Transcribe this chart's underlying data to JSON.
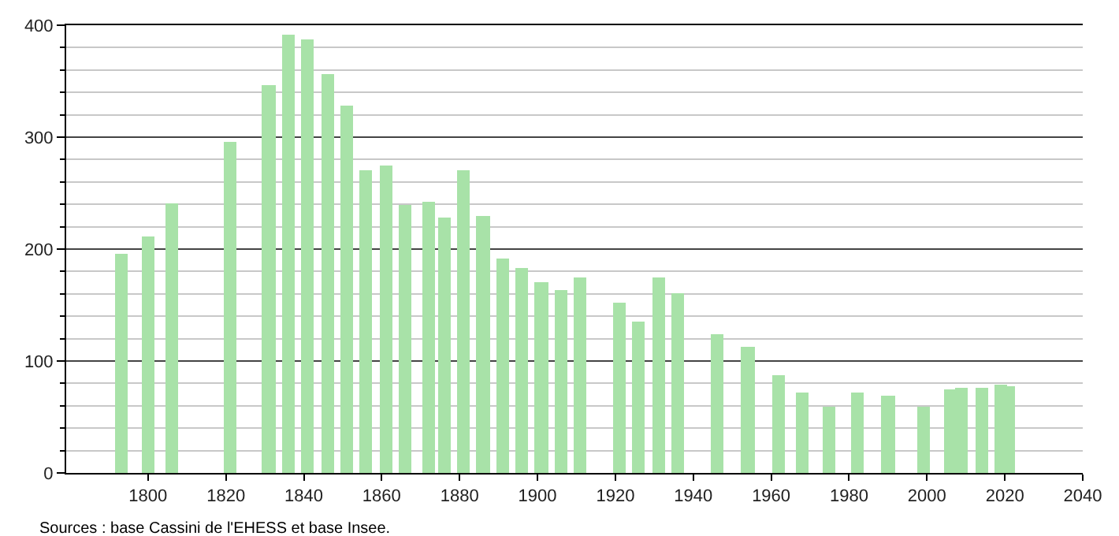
{
  "chart_data": {
    "type": "bar",
    "color": "#a8e2a8",
    "x": [
      1793,
      1800,
      1806,
      1821,
      1831,
      1836,
      1841,
      1846,
      1851,
      1856,
      1861,
      1866,
      1872,
      1876,
      1881,
      1886,
      1891,
      1896,
      1901,
      1906,
      1911,
      1921,
      1926,
      1931,
      1936,
      1946,
      1954,
      1962,
      1968,
      1975,
      1982,
      1990,
      1999,
      2006,
      2009,
      2014,
      2019,
      2021
    ],
    "values": [
      196,
      211,
      241,
      296,
      346,
      391,
      387,
      357,
      328,
      270,
      274,
      240,
      242,
      228,
      270,
      230,
      191,
      183,
      170,
      163,
      174,
      152,
      135,
      174,
      160,
      124,
      112,
      87,
      72,
      59,
      72,
      69,
      59,
      75,
      76,
      76,
      79,
      77
    ],
    "xlim": [
      1779,
      2040
    ],
    "xticks": [
      1800,
      1820,
      1840,
      1860,
      1880,
      1900,
      1920,
      1940,
      1960,
      1980,
      2000,
      2020,
      2040
    ],
    "ylim": [
      0,
      400
    ],
    "yticks": [
      0,
      {
        "value": 20,
        "label": null
      },
      {
        "value": 40,
        "label": null
      },
      {
        "value": 60,
        "label": null
      },
      {
        "value": 80,
        "label": null
      },
      100,
      {
        "value": 120,
        "label": null
      },
      {
        "value": 140,
        "label": null
      },
      {
        "value": 160,
        "label": null
      },
      {
        "value": 180,
        "label": null
      },
      200,
      {
        "value": 220,
        "label": null
      },
      {
        "value": 240,
        "label": null
      },
      {
        "value": 260,
        "label": null
      },
      {
        "value": 280,
        "label": null
      },
      300,
      {
        "value": 320,
        "label": null
      },
      {
        "value": 340,
        "label": null
      },
      {
        "value": 360,
        "label": null
      },
      {
        "value": 380,
        "label": null
      },
      400
    ],
    "grid": "y",
    "annotations": [
      "Sources : base Cassini de l'EHESS et base Insee."
    ]
  }
}
